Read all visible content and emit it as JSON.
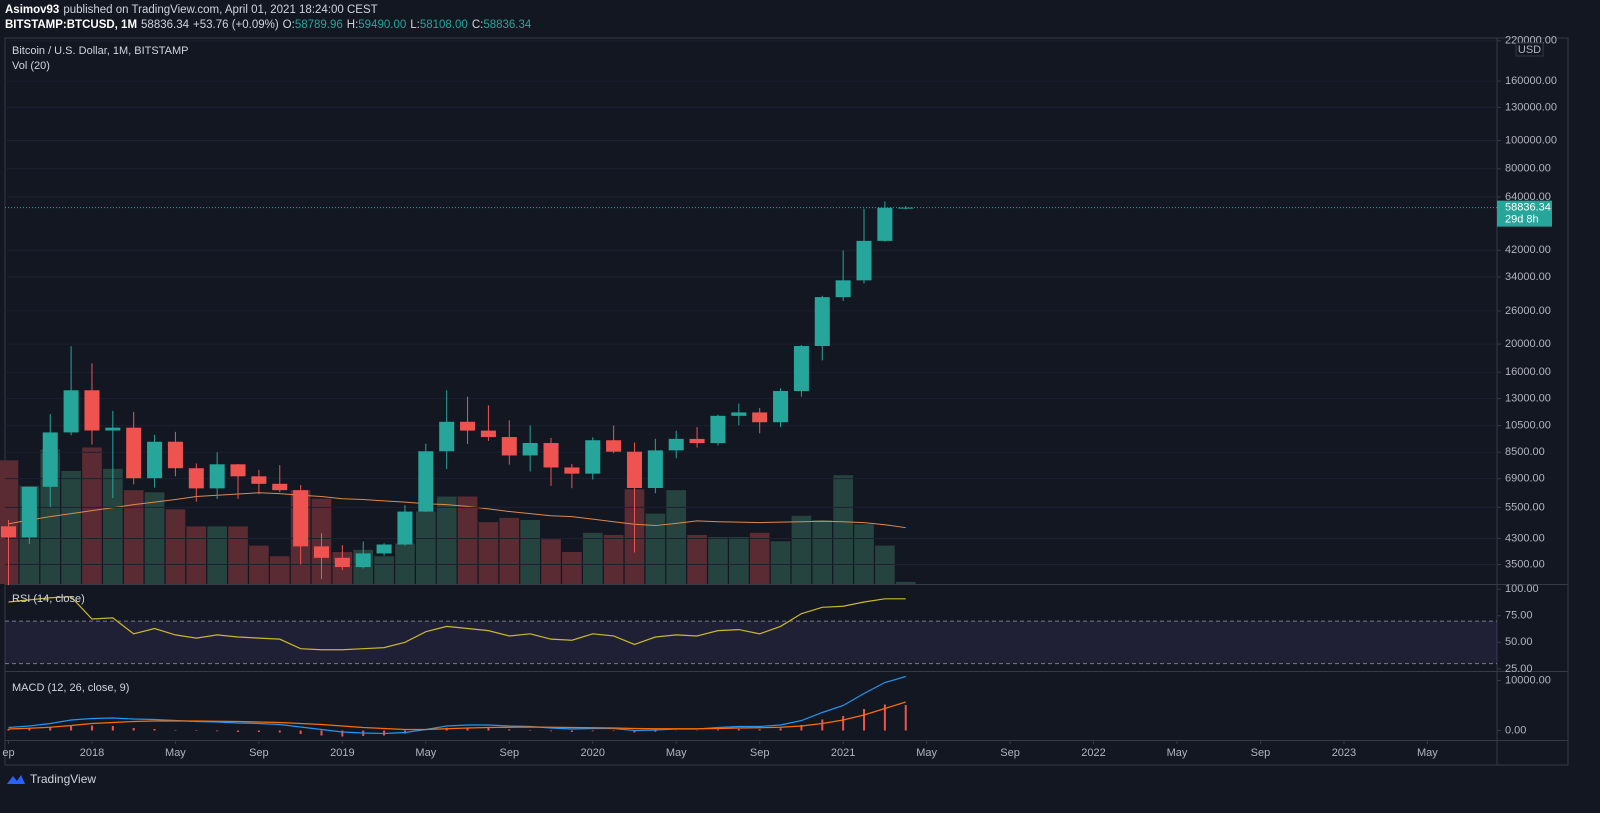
{
  "header": {
    "author": "Asimov93",
    "published": "published on TradingView.com, April 01, 2021 18:24:00 CEST",
    "symbol": "BITSTAMP:BTCUSD, 1M",
    "last": "58836.34",
    "change": "+53.76 (+0.09%)",
    "ohlc": [
      {
        "key": "O:",
        "value": "58789.96"
      },
      {
        "key": "H:",
        "value": "59490.00"
      },
      {
        "key": "L:",
        "value": "58108.00"
      },
      {
        "key": "C:",
        "value": "58836.34"
      }
    ]
  },
  "footer": {
    "brand": "TradingView"
  },
  "chart_data": [
    {
      "type": "candlestick",
      "title": "Bitcoin / U.S. Dollar, 1M, BITSTAMP",
      "currency": "USD",
      "categories": [
        "2017-09",
        "2017-10",
        "2017-11",
        "2017-12",
        "2018-01",
        "2018-02",
        "2018-03",
        "2018-04",
        "2018-05",
        "2018-06",
        "2018-07",
        "2018-08",
        "2018-09",
        "2018-10",
        "2018-11",
        "2018-12",
        "2019-01",
        "2019-02",
        "2019-03",
        "2019-04",
        "2019-05",
        "2019-06",
        "2019-07",
        "2019-08",
        "2019-09",
        "2019-10",
        "2019-11",
        "2019-12",
        "2020-01",
        "2020-02",
        "2020-03",
        "2020-04",
        "2020-05",
        "2020-06",
        "2020-07",
        "2020-08",
        "2020-09",
        "2020-10",
        "2020-11",
        "2020-12",
        "2021-01",
        "2021-02",
        "2021-03",
        "2021-04"
      ],
      "open": [
        4735,
        4338,
        6468,
        9946,
        13880,
        10100,
        10326,
        6926,
        9240,
        7494,
        6390,
        7730,
        7030,
        6625,
        6300,
        4040,
        3690,
        3430,
        3820,
        4100,
        5320,
        8570,
        10820,
        10090,
        9590,
        8290,
        9150,
        7540,
        7180,
        9350,
        8540,
        6410,
        8630,
        9450,
        9140,
        11340,
        11650,
        10780,
        13800,
        19700,
        28990,
        33110,
        45240,
        58789.96
      ],
      "high": [
        4975,
        6470,
        11500,
        19666,
        17176,
        11789,
        11700,
        9759,
        9990,
        7780,
        8500,
        7750,
        7400,
        7680,
        6560,
        4480,
        4080,
        4200,
        4140,
        5600,
        9100,
        13880,
        13200,
        12325,
        10950,
        10500,
        9520,
        7750,
        9570,
        10500,
        9180,
        9460,
        10080,
        10380,
        11450,
        12480,
        12070,
        14100,
        19850,
        29300,
        41950,
        58350,
        61780,
        59490
      ],
      "low": [
        2972,
        4110,
        5507,
        9722,
        9035,
        5920,
        6600,
        6425,
        7030,
        5750,
        5880,
        5880,
        6100,
        6200,
        3500,
        3120,
        3350,
        3390,
        3750,
        4060,
        5300,
        7440,
        9070,
        9300,
        7710,
        7300,
        6515,
        6400,
        6855,
        8440,
        3850,
        6150,
        8110,
        8830,
        8970,
        10520,
        9880,
        10380,
        13200,
        17580,
        28130,
        32300,
        44970,
        58108
      ],
      "close": [
        4338,
        6468,
        9946,
        13880,
        10100,
        10326,
        6926,
        9240,
        7494,
        6390,
        7730,
        7030,
        6625,
        6300,
        4040,
        3690,
        3430,
        3820,
        4100,
        5320,
        8570,
        10820,
        10090,
        9590,
        8290,
        9150,
        7540,
        7180,
        9350,
        8540,
        6410,
        8630,
        9450,
        9140,
        11340,
        11650,
        10780,
        13800,
        19700,
        28990,
        33110,
        45240,
        58789.96,
        58836.34
      ],
      "up_color": "#26a69a",
      "down_color": "#ef5350",
      "log_scale": true,
      "grid": true,
      "ylim": [
        3000,
        225000
      ],
      "yticks": [
        {
          "value": 3500,
          "label": "3500.00"
        },
        {
          "value": 4300,
          "label": "4300.00"
        },
        {
          "value": 5500,
          "label": "5500.00"
        },
        {
          "value": 6900,
          "label": "6900.00"
        },
        {
          "value": 8500,
          "label": "8500.00"
        },
        {
          "value": 10500,
          "label": "10500.00"
        },
        {
          "value": 13000,
          "label": "13000.00"
        },
        {
          "value": 16000,
          "label": "16000.00"
        },
        {
          "value": 20000,
          "label": "20000.00"
        },
        {
          "value": 26000,
          "label": "26000.00"
        },
        {
          "value": 34000,
          "label": "34000.00"
        },
        {
          "value": 42000,
          "label": "42000.00"
        },
        {
          "value": 64000,
          "label": "64000.00"
        },
        {
          "value": 80000,
          "label": "80000.00"
        },
        {
          "value": 100000,
          "label": "100000.00"
        },
        {
          "value": 130000,
          "label": "130000.00"
        },
        {
          "value": 160000,
          "label": "160000.00"
        },
        {
          "value": 220000,
          "label": "220000.00"
        }
      ],
      "last_price": {
        "value": 58836.34,
        "label": "58836.34",
        "countdown": "29d 8h"
      },
      "xlim": [
        "2017-09",
        "2023-08"
      ],
      "xticks": [
        {
          "value": "2017-09",
          "label": "ep"
        },
        {
          "value": "2018-01",
          "label": "2018"
        },
        {
          "value": "2018-05",
          "label": "May"
        },
        {
          "value": "2018-09",
          "label": "Sep"
        },
        {
          "value": "2019-01",
          "label": "2019"
        },
        {
          "value": "2019-05",
          "label": "May"
        },
        {
          "value": "2019-09",
          "label": "Sep"
        },
        {
          "value": "2020-01",
          "label": "2020"
        },
        {
          "value": "2020-05",
          "label": "May"
        },
        {
          "value": "2020-09",
          "label": "Sep"
        },
        {
          "value": "2021-01",
          "label": "2021"
        },
        {
          "value": "2021-05",
          "label": "May"
        },
        {
          "value": "2021-09",
          "label": "Sep"
        },
        {
          "value": "2022-01",
          "label": "2022"
        },
        {
          "value": "2022-05",
          "label": "May"
        },
        {
          "value": "2022-09",
          "label": "Sep"
        },
        {
          "value": "2023-01",
          "label": "2023"
        },
        {
          "value": "2023-05",
          "label": "May"
        }
      ]
    },
    {
      "type": "bar",
      "title": "Vol (20)",
      "values": [
        290,
        230,
        315,
        265,
        320,
        270,
        220,
        215,
        175,
        135,
        135,
        135,
        90,
        65,
        220,
        200,
        75,
        80,
        65,
        95,
        170,
        205,
        205,
        145,
        155,
        150,
        105,
        75,
        120,
        115,
        222,
        165,
        220,
        115,
        110,
        110,
        120,
        100,
        160,
        150,
        255,
        140,
        90,
        5
      ],
      "ma": [
        141,
        150,
        158,
        165,
        172,
        179,
        186,
        192,
        198,
        205,
        208,
        211,
        214,
        212,
        208,
        205,
        200,
        198,
        195,
        192,
        188,
        186,
        182,
        176,
        170,
        165,
        160,
        158,
        152,
        146,
        140,
        137,
        142,
        148,
        146,
        145,
        144,
        145,
        146,
        147,
        146,
        144,
        139,
        132
      ],
      "up_color": "#26443f",
      "down_color": "#5b2b33",
      "ma_color": "#e0894b"
    },
    {
      "type": "line",
      "title": "RSI (14, close)",
      "values": [
        88,
        90,
        92,
        93,
        72,
        73,
        58,
        63,
        57,
        54,
        57,
        55,
        54,
        53,
        44,
        43,
        43,
        44,
        45,
        50,
        60,
        65,
        63,
        61,
        56,
        58,
        53,
        52,
        58,
        56,
        48,
        55,
        57,
        56,
        61,
        62,
        58,
        65,
        77,
        83,
        84,
        88,
        91,
        91
      ],
      "color": "#c9b92a",
      "band": [
        30,
        70
      ],
      "band_color": "#7e57c2",
      "ylim": [
        23,
        104
      ],
      "yticks": [
        {
          "value": 100,
          "label": "100.00"
        },
        {
          "value": 75,
          "label": "75.00"
        },
        {
          "value": 50,
          "label": "50.00"
        },
        {
          "value": 25,
          "label": "25.00"
        }
      ]
    },
    {
      "type": "macd",
      "title": "MACD (12, 26, close, 9)",
      "macd": [
        600,
        900,
        1400,
        2100,
        2400,
        2500,
        2300,
        2200,
        2000,
        1800,
        1700,
        1500,
        1400,
        1200,
        700,
        200,
        -300,
        -500,
        -600,
        -400,
        200,
        900,
        1100,
        1100,
        900,
        800,
        500,
        300,
        400,
        400,
        0,
        100,
        300,
        300,
        600,
        800,
        800,
        1100,
        2000,
        3600,
        5000,
        7400,
        9600,
        10800
      ],
      "signal": [
        300,
        450,
        650,
        1000,
        1400,
        1600,
        1800,
        1900,
        1900,
        1900,
        1850,
        1800,
        1700,
        1600,
        1400,
        1200,
        900,
        600,
        400,
        200,
        200,
        350,
        500,
        600,
        650,
        700,
        650,
        600,
        550,
        500,
        400,
        350,
        350,
        350,
        400,
        500,
        550,
        650,
        900,
        1400,
        2100,
        3100,
        4400,
        5700
      ],
      "histogram": [
        300,
        450,
        750,
        1100,
        1000,
        900,
        500,
        300,
        100,
        -100,
        -150,
        -300,
        -300,
        -400,
        -700,
        -1000,
        -1200,
        -1100,
        -1000,
        -600,
        0,
        550,
        600,
        500,
        250,
        100,
        -150,
        -300,
        -150,
        -100,
        -400,
        -250,
        -50,
        -50,
        200,
        300,
        250,
        450,
        1100,
        2200,
        2900,
        4300,
        5200,
        5100
      ],
      "macd_color": "#2196f3",
      "signal_color": "#ff6d00",
      "histogram_color": "#ef5350",
      "ylim": [
        -1900,
        11700
      ],
      "yticks": [
        {
          "value": 10000,
          "label": "10000.00"
        },
        {
          "value": 0,
          "label": "0.00"
        }
      ]
    }
  ]
}
